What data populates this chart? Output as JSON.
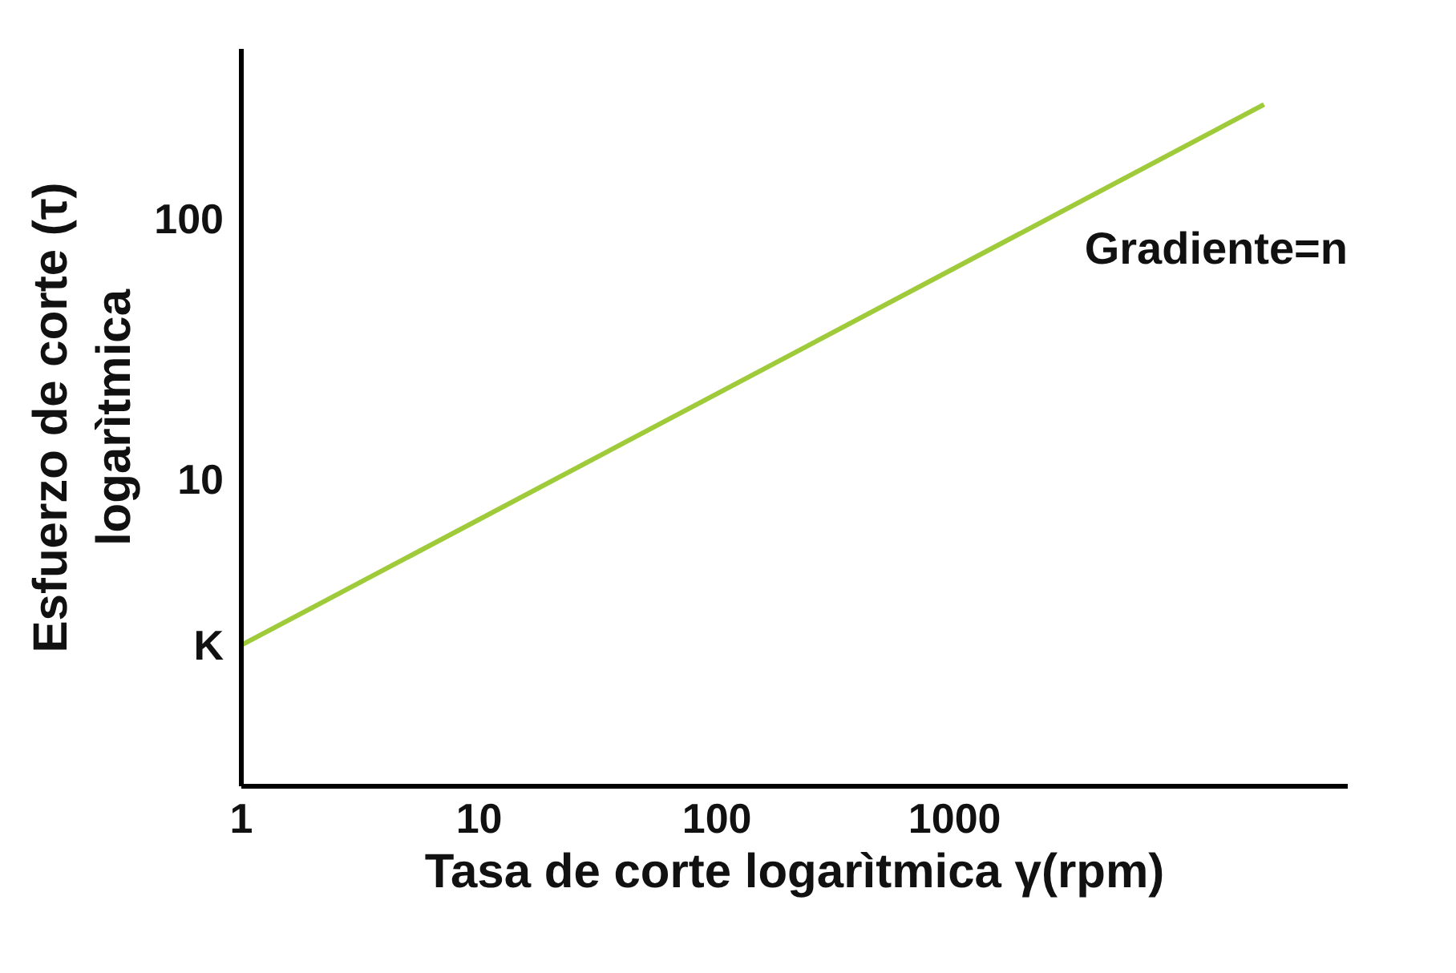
{
  "chart_data": {
    "type": "line",
    "xlabel": "Tasa de corte logarìtmica γ(rpm)",
    "ylabel": "Esfuerzo de corte (τ)\nlogarìtmica",
    "x": [
      1,
      20000
    ],
    "series": [
      {
        "color": "#9fcb3b",
        "values": [
          2.3,
          275
        ]
      }
    ],
    "log": "xy",
    "xlim": [
      1,
      45000
    ],
    "ylim": [
      0.66,
      450
    ],
    "xticks": [
      1,
      10,
      100,
      1000
    ],
    "yticks": [
      {
        "value": 2.3,
        "label": "K"
      },
      10,
      100
    ],
    "grid": false,
    "marker": "none",
    "line_style": "solid",
    "annotations": [
      "Gradiente=n"
    ]
  }
}
